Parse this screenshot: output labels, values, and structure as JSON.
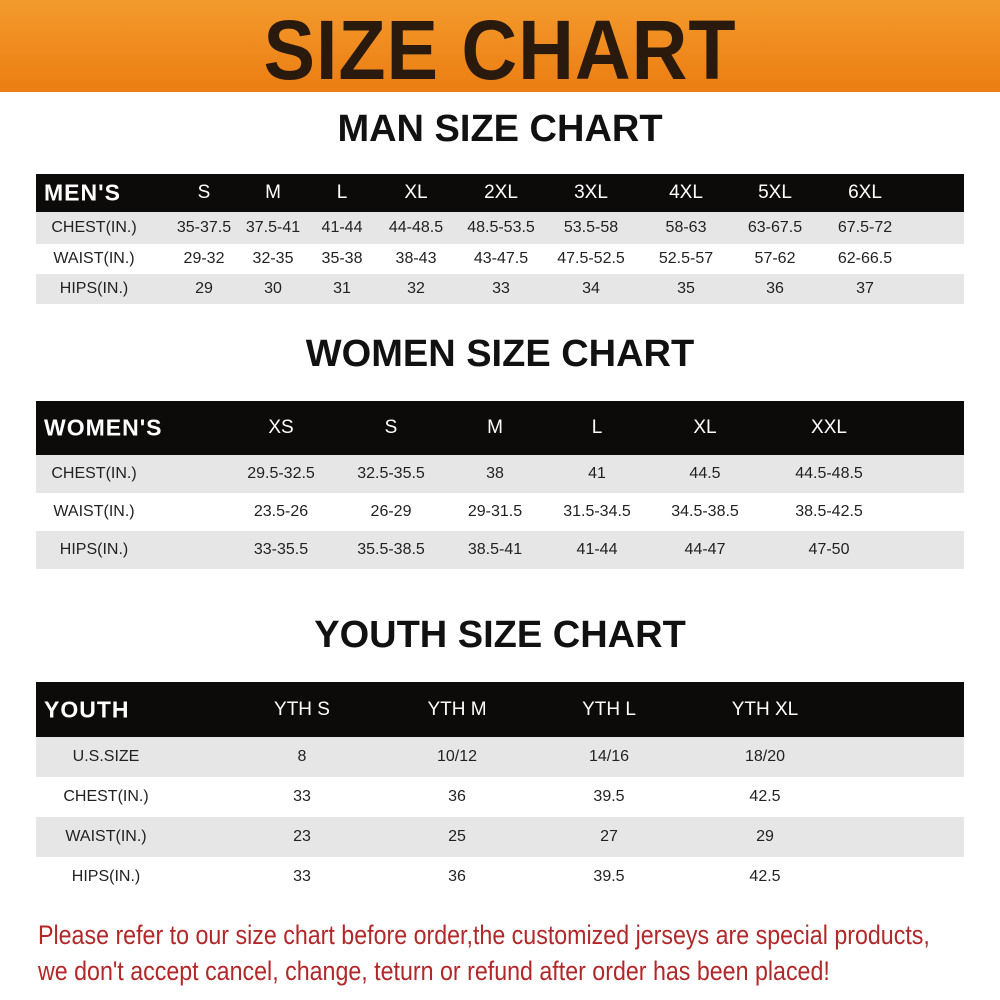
{
  "banner": {
    "title": "SIZE CHART",
    "color": "#ee8318"
  },
  "men": {
    "title": "MAN SIZE CHART",
    "header": [
      "MEN'S",
      "S",
      "M",
      "L",
      "XL",
      "2XL",
      "3XL",
      "4XL",
      "5XL",
      "6XL"
    ],
    "rows": [
      [
        "CHEST(IN.)",
        "35-37.5",
        "37.5-41",
        "41-44",
        "44-48.5",
        "48.5-53.5",
        "53.5-58",
        "58-63",
        "63-67.5",
        "67.5-72"
      ],
      [
        "WAIST(IN.)",
        "29-32",
        "32-35",
        "35-38",
        "38-43",
        "43-47.5",
        "47.5-52.5",
        "52.5-57",
        "57-62",
        "62-66.5"
      ],
      [
        "HIPS(IN.)",
        "29",
        "30",
        "31",
        "32",
        "33",
        "34",
        "35",
        "36",
        "37"
      ]
    ]
  },
  "women": {
    "title": "WOMEN SIZE CHART",
    "header": [
      "WOMEN'S",
      "XS",
      "S",
      "M",
      "L",
      "XL",
      "XXL"
    ],
    "rows": [
      [
        "CHEST(IN.)",
        "29.5-32.5",
        "32.5-35.5",
        "38",
        "41",
        "44.5",
        "44.5-48.5"
      ],
      [
        "WAIST(IN.)",
        "23.5-26",
        "26-29",
        "29-31.5",
        "31.5-34.5",
        "34.5-38.5",
        "38.5-42.5"
      ],
      [
        "HIPS(IN.)",
        "33-35.5",
        "35.5-38.5",
        "38.5-41",
        "41-44",
        "44-47",
        "47-50"
      ]
    ]
  },
  "youth": {
    "title": "YOUTH SIZE CHART",
    "header": [
      "YOUTH",
      "YTH S",
      "YTH M",
      "YTH L",
      "YTH XL"
    ],
    "rows": [
      [
        "U.S.SIZE",
        "8",
        "10/12",
        "14/16",
        "18/20"
      ],
      [
        "CHEST(IN.)",
        "33",
        "36",
        "39.5",
        "42.5"
      ],
      [
        "WAIST(IN.)",
        "23",
        "25",
        "27",
        "29"
      ],
      [
        "HIPS(IN.)",
        "33",
        "36",
        "39.5",
        "42.5"
      ]
    ]
  },
  "footer": {
    "line1": "Please refer to our size chart before order,the customized jerseys are special products,",
    "line2": "we don't accept cancel, change, teturn or refund after order has been placed!",
    "color": "#b2282a"
  }
}
